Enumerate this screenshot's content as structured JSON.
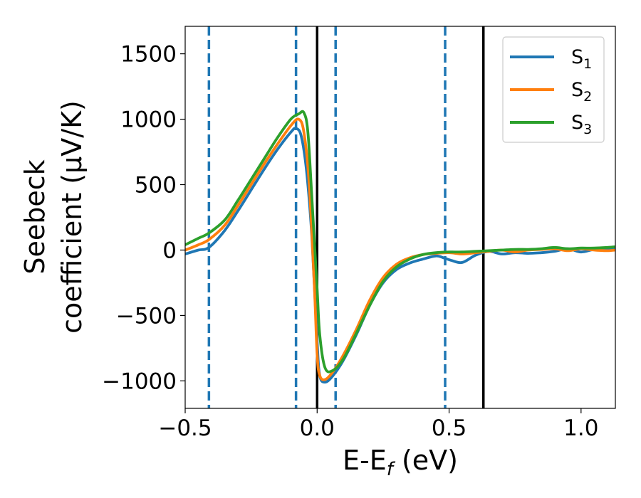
{
  "chart_data": {
    "type": "line",
    "title": "",
    "xlabel": {
      "prefix": "E-E",
      "sub": "f",
      "suffix": " (eV)"
    },
    "ylabel": {
      "line1": "Seebeck",
      "line2": "coefficient  (μV/K)"
    },
    "xlim": [
      -0.5,
      1.13
    ],
    "ylim": [
      -1210,
      1710
    ],
    "xticks": [
      -0.5,
      0.0,
      0.5,
      1.0
    ],
    "xtick_labels": [
      "−0.5",
      "0.0",
      "0.5",
      "1.0"
    ],
    "yticks": [
      -1000,
      -500,
      0,
      500,
      1000,
      1500
    ],
    "ytick_labels": [
      "−1000",
      "−500",
      "0",
      "500",
      "1000",
      "1500"
    ],
    "grid": false,
    "legend_position": "top-right",
    "vlines_dashed": {
      "x": [
        -0.41,
        -0.08,
        0.07,
        0.485
      ],
      "color": "#1f77b4"
    },
    "vlines_solid": {
      "x": [
        0.0,
        0.63
      ],
      "color": "#000000"
    },
    "series": [
      {
        "name": "S",
        "sub": "1",
        "color": "#1f77b4",
        "x": [
          -0.5,
          -0.45,
          -0.41,
          -0.35,
          -0.3,
          -0.25,
          -0.2,
          -0.15,
          -0.1,
          -0.08,
          -0.06,
          -0.04,
          -0.02,
          0.0,
          0.01,
          0.03,
          0.06,
          0.1,
          0.15,
          0.2,
          0.25,
          0.3,
          0.35,
          0.4,
          0.45,
          0.48,
          0.51,
          0.55,
          0.6,
          0.65,
          0.7,
          0.75,
          0.8,
          0.85,
          0.9,
          0.95,
          1.0,
          1.05,
          1.1,
          1.13
        ],
        "y": [
          -30,
          0,
          20,
          150,
          300,
          460,
          620,
          770,
          900,
          930,
          870,
          600,
          100,
          -700,
          -960,
          -1010,
          -960,
          -840,
          -640,
          -420,
          -250,
          -150,
          -100,
          -70,
          -45,
          -60,
          -80,
          -95,
          -40,
          -10,
          -30,
          -20,
          -25,
          -20,
          -10,
          10,
          -15,
          5,
          5,
          10
        ]
      },
      {
        "name": "S",
        "sub": "2",
        "color": "#ff7f0e",
        "x": [
          -0.5,
          -0.45,
          -0.41,
          -0.35,
          -0.3,
          -0.25,
          -0.2,
          -0.15,
          -0.1,
          -0.07,
          -0.05,
          -0.03,
          -0.01,
          0.0,
          0.01,
          0.03,
          0.06,
          0.1,
          0.15,
          0.2,
          0.25,
          0.3,
          0.35,
          0.4,
          0.45,
          0.5,
          0.55,
          0.6,
          0.65,
          0.7,
          0.75,
          0.8,
          0.85,
          0.9,
          0.95,
          1.0,
          1.05,
          1.1,
          1.13
        ],
        "y": [
          0,
          40,
          80,
          190,
          340,
          500,
          660,
          810,
          950,
          1000,
          900,
          500,
          -300,
          -800,
          -960,
          -990,
          -930,
          -800,
          -600,
          -380,
          -210,
          -110,
          -60,
          -35,
          -25,
          -20,
          -30,
          -20,
          -10,
          0,
          -15,
          0,
          5,
          10,
          -5,
          10,
          0,
          -5,
          0
        ]
      },
      {
        "name": "S",
        "sub": "3",
        "color": "#2ca02c",
        "x": [
          -0.5,
          -0.45,
          -0.41,
          -0.35,
          -0.3,
          -0.25,
          -0.2,
          -0.15,
          -0.1,
          -0.07,
          -0.05,
          -0.035,
          -0.02,
          0.0,
          0.01,
          0.03,
          0.06,
          0.1,
          0.15,
          0.2,
          0.25,
          0.3,
          0.35,
          0.4,
          0.45,
          0.5,
          0.55,
          0.6,
          0.65,
          0.7,
          0.75,
          0.8,
          0.85,
          0.9,
          0.95,
          1.0,
          1.05,
          1.1,
          1.13
        ],
        "y": [
          40,
          90,
          130,
          230,
          380,
          540,
          700,
          860,
          1000,
          1040,
          1050,
          900,
          400,
          -300,
          -650,
          -900,
          -920,
          -830,
          -630,
          -420,
          -240,
          -130,
          -70,
          -35,
          -20,
          -15,
          -15,
          -10,
          -5,
          0,
          5,
          5,
          10,
          20,
          10,
          15,
          15,
          20,
          25
        ]
      }
    ]
  }
}
